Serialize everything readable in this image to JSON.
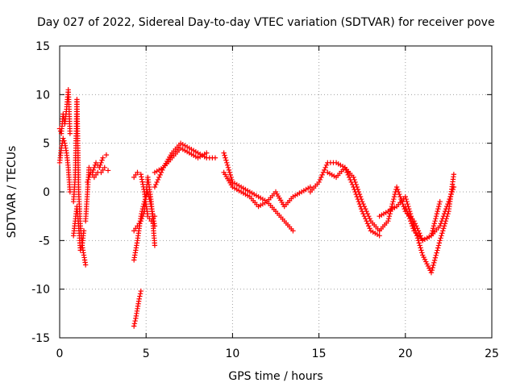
{
  "chart_data": {
    "type": "scatter",
    "title": "Day 027 of 2022, Sidereal Day-to-day VTEC variation (SDTVAR) for receiver pove",
    "xlabel": "GPS time / hours",
    "ylabel": "SDTVAR / TECUs",
    "xlim": [
      0,
      25
    ],
    "ylim": [
      -15,
      15
    ],
    "x_ticks": [
      0,
      5,
      10,
      15,
      20,
      25
    ],
    "y_ticks": [
      -15,
      -10,
      -5,
      0,
      5,
      10,
      15
    ],
    "grid": true,
    "marker": "+",
    "color": "#ff0000",
    "series": [
      {
        "name": "SDTVAR",
        "segments": [
          {
            "x": [
              0.0,
              0.1,
              0.2,
              0.3,
              0.4,
              0.5,
              0.6
            ],
            "y": [
              6.5,
              6.0,
              8.0,
              7.0,
              8.5,
              10.5,
              6.0
            ]
          },
          {
            "x": [
              0.0,
              0.1,
              0.2,
              0.3,
              0.4,
              0.5,
              0.6
            ],
            "y": [
              3.0,
              4.5,
              5.5,
              5.0,
              4.0,
              2.5,
              0.0
            ]
          },
          {
            "x": [
              0.8,
              0.9,
              1.0,
              1.1,
              1.2,
              1.3,
              1.4,
              1.5
            ],
            "y": [
              -1.0,
              1.5,
              9.5,
              0.0,
              -3.5,
              -5.5,
              -6.5,
              -7.5
            ]
          },
          {
            "x": [
              0.8,
              0.9,
              1.0,
              1.1,
              1.2,
              1.3,
              1.4
            ],
            "y": [
              -4.5,
              -3.0,
              -1.5,
              -3.5,
              -6.0,
              -5.5,
              -4.0
            ]
          },
          {
            "x": [
              1.5,
              1.7,
              1.9,
              2.1,
              2.3,
              2.5,
              2.7
            ],
            "y": [
              -3.0,
              2.5,
              2.0,
              3.0,
              2.5,
              3.5,
              3.8
            ]
          },
          {
            "x": [
              1.6,
              1.8,
              2.0,
              2.2,
              2.4,
              2.6,
              2.8
            ],
            "y": [
              1.0,
              2.0,
              1.5,
              2.0,
              2.0,
              2.5,
              2.2
            ]
          },
          {
            "x": [
              4.3,
              4.4,
              4.5,
              4.6,
              4.7
            ],
            "y": [
              -13.8,
              -13.0,
              -12.0,
              -11.0,
              -10.2
            ]
          },
          {
            "x": [
              4.3,
              4.5,
              4.7,
              4.9,
              5.1,
              5.3,
              5.5
            ],
            "y": [
              -7.0,
              -5.0,
              -2.5,
              -1.0,
              0.0,
              -1.5,
              -3.5
            ]
          },
          {
            "x": [
              4.3,
              4.5,
              4.7,
              4.9,
              5.1,
              5.3,
              5.5
            ],
            "y": [
              -4.0,
              -3.5,
              -3.0,
              -2.0,
              1.5,
              -1.0,
              -5.5
            ]
          },
          {
            "x": [
              4.3,
              4.5,
              4.7,
              4.9,
              5.1,
              5.3,
              5.5
            ],
            "y": [
              1.5,
              2.0,
              1.8,
              0.0,
              -2.5,
              -3.0,
              -2.5
            ]
          },
          {
            "x": [
              5.5,
              6.0,
              6.5,
              7.0,
              7.5,
              8.0,
              8.5,
              9.0
            ],
            "y": [
              2.0,
              2.5,
              4.0,
              5.0,
              4.5,
              4.0,
              3.5,
              3.5
            ]
          },
          {
            "x": [
              5.5,
              6.0,
              6.5,
              7.0,
              7.5,
              8.0,
              8.5
            ],
            "y": [
              0.5,
              2.5,
              3.5,
              4.5,
              4.0,
              3.5,
              4.0
            ]
          },
          {
            "x": [
              9.5,
              10.0,
              10.5,
              11.0,
              11.5,
              12.0,
              12.5,
              13.0,
              13.5,
              14.0,
              14.5
            ],
            "y": [
              4.0,
              1.0,
              0.5,
              0.0,
              -0.5,
              -1.0,
              0.0,
              -1.5,
              -0.5,
              0.0,
              0.5
            ]
          },
          {
            "x": [
              9.5,
              10.0,
              10.5,
              11.0,
              11.5,
              12.0,
              12.5,
              13.0,
              13.5
            ],
            "y": [
              2.0,
              0.5,
              0.0,
              -0.5,
              -1.5,
              -1.0,
              -2.0,
              -3.0,
              -4.0
            ]
          },
          {
            "x": [
              14.5,
              15.0,
              15.5,
              16.0,
              16.5,
              17.0,
              17.5,
              18.0,
              18.5
            ],
            "y": [
              0.0,
              1.0,
              3.0,
              3.0,
              2.5,
              0.5,
              -2.0,
              -4.0,
              -4.5
            ]
          },
          {
            "x": [
              15.5,
              16.0,
              16.5,
              17.0,
              17.5,
              18.0,
              18.5
            ],
            "y": [
              2.0,
              1.5,
              2.5,
              1.5,
              -1.0,
              -3.0,
              -4.0
            ]
          },
          {
            "x": [
              18.5,
              19.0,
              19.5,
              20.0,
              20.5,
              21.0,
              21.5,
              22.0
            ],
            "y": [
              -4.0,
              -3.0,
              0.5,
              -2.0,
              -3.0,
              -5.0,
              -4.5,
              -1.0
            ]
          },
          {
            "x": [
              18.5,
              19.0,
              19.5,
              20.0,
              20.5,
              21.0,
              21.5,
              22.0,
              22.5,
              22.8
            ],
            "y": [
              -2.5,
              -2.0,
              -1.5,
              -0.5,
              -3.5,
              -6.5,
              -8.3,
              -5.0,
              -2.0,
              1.8
            ]
          },
          {
            "x": [
              20.0,
              20.5,
              21.0,
              21.5,
              22.0,
              22.5,
              22.8
            ],
            "y": [
              -1.5,
              -4.0,
              -5.0,
              -4.5,
              -3.5,
              -1.0,
              0.5
            ]
          }
        ]
      }
    ]
  }
}
